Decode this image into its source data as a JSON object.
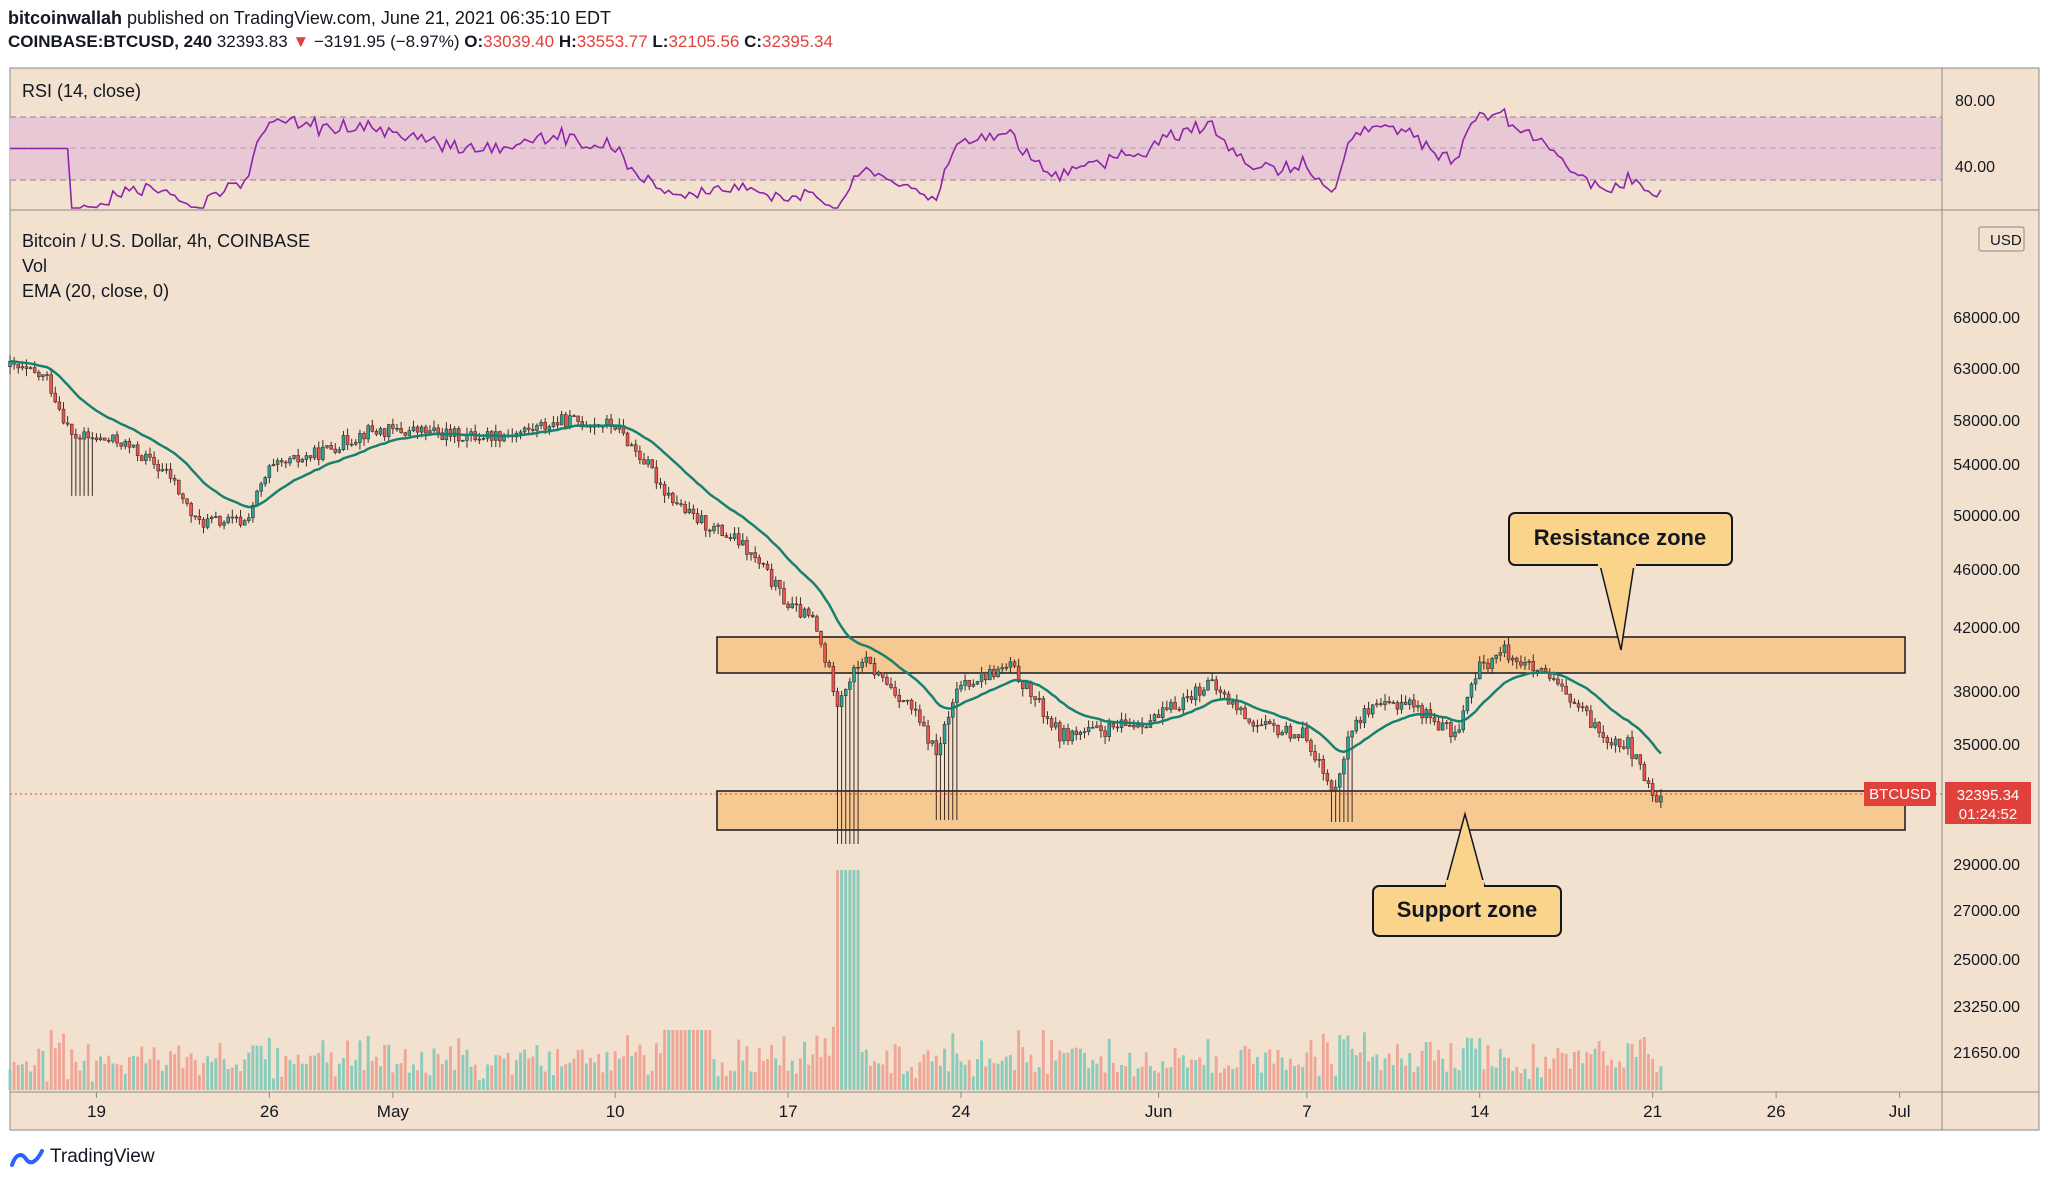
{
  "header": {
    "author": "bitcoinwallah",
    "published": "published on TradingView.com, June 21, 2021 06:35:10 EDT",
    "symbol": "COINBASE:BTCUSD, 240",
    "last": "32393.83",
    "change": "−3191.95 (−8.97%)",
    "o_label": "O:",
    "o_value": "33039.40",
    "h_label": "H:",
    "h_value": "33553.77",
    "l_label": "L:",
    "l_value": "32105.56",
    "c_label": "C:",
    "c_value": "32395.34"
  },
  "rsi": {
    "label": "RSI (14, close)",
    "ticks": [
      "80.00",
      "40.00"
    ],
    "band_upper": 70,
    "band_lower": 30,
    "color": "#8e24aa"
  },
  "main": {
    "title": "Bitcoin / U.S. Dollar, 4h, COINBASE",
    "vol_label": "Vol",
    "ema_label": "EMA (20, close, 0)",
    "currency": "USD",
    "price_ticks": [
      "68000.00",
      "63000.00",
      "58000.00",
      "54000.00",
      "50000.00",
      "46000.00",
      "42000.00",
      "38000.00",
      "35000.00",
      "29000.00",
      "27000.00",
      "25000.00",
      "23250.00",
      "21650.00"
    ],
    "last_price_label": "32395.34",
    "countdown": "01:24:52",
    "pair_tag": "BTCUSD",
    "resistance_label": "Resistance zone",
    "support_label": "Support zone"
  },
  "x_axis": {
    "labels": [
      "19",
      "26",
      "May",
      "10",
      "17",
      "24",
      "Jun",
      "7",
      "14",
      "21",
      "26",
      "Jul"
    ]
  },
  "footer": {
    "brand": "TradingView"
  },
  "colors": {
    "background": "#f2e1cf",
    "up": "#26a69a",
    "down": "#ef5350",
    "ema": "#17806e",
    "zone_fill": "#f7c992",
    "callout_fill": "#fad48a",
    "last_price": "#e0413b"
  },
  "chart_data": {
    "type": "candlestick",
    "timeframe": "4h",
    "x_range": [
      "2021-04-15",
      "2021-07-01"
    ],
    "resistance_zone": [
      39000,
      41300
    ],
    "support_zone": [
      30700,
      32700
    ],
    "last_price": 32395.34,
    "ema_period": 20,
    "price_path": [
      [
        "2021-04-15",
        63500
      ],
      [
        "2021-04-17",
        62000
      ],
      [
        "2021-04-18",
        56500
      ],
      [
        "2021-04-20",
        56000
      ],
      [
        "2021-04-22",
        53000
      ],
      [
        "2021-04-23",
        49500
      ],
      [
        "2021-04-25",
        49500
      ],
      [
        "2021-04-26",
        53500
      ],
      [
        "2021-04-28",
        55000
      ],
      [
        "2021-04-30",
        57000
      ],
      [
        "2021-05-02",
        57000
      ],
      [
        "2021-05-04",
        56500
      ],
      [
        "2021-05-06",
        56800
      ],
      [
        "2021-05-08",
        58000
      ],
      [
        "2021-05-10",
        57500
      ],
      [
        "2021-05-12",
        52000
      ],
      [
        "2021-05-13",
        50000
      ],
      [
        "2021-05-15",
        48000
      ],
      [
        "2021-05-16",
        46000
      ],
      [
        "2021-05-17",
        43500
      ],
      [
        "2021-05-18",
        42500
      ],
      [
        "2021-05-19",
        37500
      ],
      [
        "2021-05-20",
        40000
      ],
      [
        "2021-05-22",
        37000
      ],
      [
        "2021-05-23",
        34500
      ],
      [
        "2021-05-24",
        38500
      ],
      [
        "2021-05-26",
        39500
      ],
      [
        "2021-05-28",
        35500
      ],
      [
        "2021-05-30",
        35800
      ],
      [
        "2021-06-01",
        36500
      ],
      [
        "2021-06-03",
        38500
      ],
      [
        "2021-06-05",
        36000
      ],
      [
        "2021-06-07",
        35500
      ],
      [
        "2021-06-08",
        32500
      ],
      [
        "2021-06-09",
        36500
      ],
      [
        "2021-06-11",
        37500
      ],
      [
        "2021-06-13",
        35500
      ],
      [
        "2021-06-14",
        39500
      ],
      [
        "2021-06-15",
        40500
      ],
      [
        "2021-06-17",
        38500
      ],
      [
        "2021-06-19",
        35500
      ],
      [
        "2021-06-20",
        35000
      ],
      [
        "2021-06-21",
        32395
      ]
    ]
  }
}
